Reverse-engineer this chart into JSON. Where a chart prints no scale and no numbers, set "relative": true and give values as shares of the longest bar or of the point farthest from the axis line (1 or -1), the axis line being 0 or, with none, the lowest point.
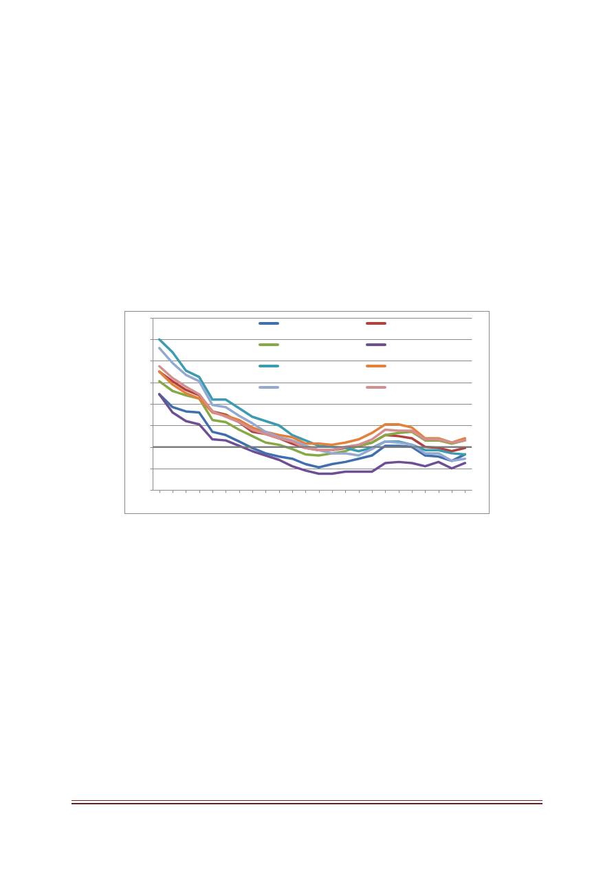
{
  "chart_data": {
    "type": "line",
    "relative": true,
    "grid": "y",
    "categories": [
      null,
      null,
      null,
      null,
      null,
      null,
      null,
      null,
      null,
      null,
      null,
      null,
      null,
      null,
      null,
      null,
      null,
      null,
      null,
      null,
      null,
      null,
      null,
      null
    ],
    "series": [
      {
        "color": "#3f6fac",
        "values": [
          0.49,
          0.37,
          0.33,
          0.32,
          0.14,
          0.11,
          0.05,
          -0.01,
          -0.06,
          -0.09,
          -0.11,
          -0.16,
          -0.19,
          -0.16,
          -0.14,
          -0.11,
          -0.08,
          0.01,
          0.01,
          0.0,
          -0.08,
          -0.09,
          -0.13,
          -0.07
        ]
      },
      {
        "color": "#b0413e",
        "values": [
          0.7,
          0.61,
          0.53,
          0.48,
          0.33,
          0.3,
          0.23,
          0.14,
          0.12,
          0.08,
          0.03,
          -0.01,
          -0.03,
          -0.03,
          -0.01,
          0.01,
          0.04,
          0.11,
          0.1,
          0.08,
          0.0,
          -0.01,
          -0.04,
          -0.01
        ]
      },
      {
        "color": "#86a845",
        "values": [
          0.61,
          0.52,
          0.48,
          0.45,
          0.25,
          0.23,
          0.16,
          0.1,
          0.04,
          0.02,
          -0.02,
          -0.07,
          -0.08,
          -0.06,
          -0.04,
          0.01,
          0.04,
          0.11,
          0.13,
          0.14,
          0.06,
          0.06,
          0.03,
          0.06
        ]
      },
      {
        "color": "#6d4f93",
        "values": [
          0.49,
          0.32,
          0.24,
          0.21,
          0.07,
          0.06,
          0.01,
          -0.04,
          -0.08,
          -0.12,
          -0.18,
          -0.22,
          -0.25,
          -0.25,
          -0.23,
          -0.23,
          -0.23,
          -0.15,
          -0.14,
          -0.15,
          -0.18,
          -0.14,
          -0.2,
          -0.15
        ]
      },
      {
        "color": "#3b9bb0",
        "values": [
          1,
          0.88,
          0.71,
          0.65,
          0.44,
          0.44,
          0.36,
          0.28,
          0.24,
          0.2,
          0.11,
          0.06,
          0.01,
          0.0,
          -0.01,
          -0.04,
          -0.01,
          0.05,
          0.05,
          0.02,
          -0.03,
          -0.03,
          -0.06,
          -0.07
        ]
      },
      {
        "color": "#e5803a",
        "values": [
          0.7,
          0.58,
          0.5,
          0.45,
          0.32,
          0.29,
          0.25,
          0.18,
          0.14,
          0.11,
          0.09,
          0.03,
          0.03,
          0.02,
          0.04,
          0.07,
          0.13,
          0.21,
          0.21,
          0.18,
          0.08,
          0.08,
          0.04,
          0.08
        ]
      },
      {
        "color": "#93a9d2",
        "values": [
          0.92,
          0.78,
          0.67,
          0.61,
          0.39,
          0.37,
          0.29,
          0.22,
          0.14,
          0.09,
          0.06,
          0.01,
          -0.03,
          -0.06,
          -0.06,
          -0.08,
          -0.02,
          0.05,
          0.04,
          0.02,
          -0.06,
          -0.06,
          -0.13,
          -0.11
        ]
      },
      {
        "color": "#d58e8e",
        "values": [
          0.75,
          0.64,
          0.56,
          0.49,
          0.33,
          0.28,
          0.23,
          0.16,
          0.12,
          0.08,
          0.05,
          -0.01,
          -0.03,
          -0.03,
          0.0,
          0.02,
          0.07,
          0.16,
          0.15,
          0.15,
          0.07,
          0.07,
          0.04,
          0.06
        ]
      }
    ]
  }
}
